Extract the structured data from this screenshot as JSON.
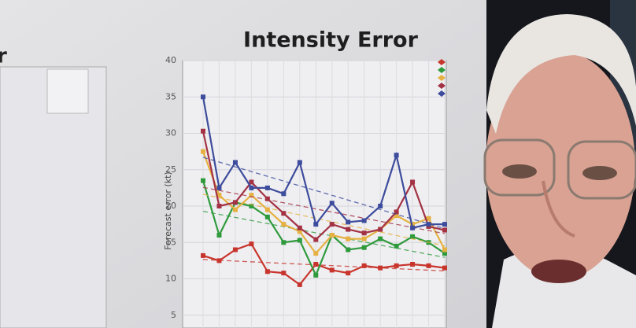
{
  "slide_text": {
    "left_title_fragment": "r"
  },
  "chart_data": {
    "type": "line",
    "title": "Intensity Error",
    "y_label": "Forecast error (kt)",
    "categories": [
      null,
      null,
      null,
      null,
      null,
      null,
      null,
      null,
      null,
      null,
      null,
      null,
      null,
      null,
      null,
      null
    ],
    "ylim": [
      4,
      40
    ],
    "yticks": [
      5,
      10,
      15,
      20,
      25,
      30,
      35,
      40
    ],
    "grid": true,
    "trend_lines": true,
    "series": [
      {
        "color": "#c8352c",
        "values": [
          13.2,
          12.5,
          14,
          14.8,
          11,
          10.8,
          9.2,
          12,
          11.2,
          10.8,
          11.8,
          11.5,
          11.8,
          12,
          11.8,
          11.5
        ]
      },
      {
        "color": "#2f9a3c",
        "values": [
          23.5,
          16,
          20.5,
          20,
          18.5,
          15,
          15.3,
          10.5,
          16,
          14,
          14.3,
          15.5,
          14.5,
          15.8,
          15,
          13.5
        ]
      },
      {
        "color": "#e6b143",
        "values": [
          27.5,
          21.5,
          19.5,
          21.5,
          19.5,
          17.5,
          16.5,
          13.5,
          16,
          15.5,
          15.5,
          16.8,
          18.7,
          17.5,
          18.3,
          14
        ]
      },
      {
        "color": "#a33244",
        "values": [
          30.3,
          20,
          20.5,
          23.3,
          21,
          19,
          17,
          15.4,
          17.5,
          16.8,
          16.3,
          16.8,
          19.2,
          23.3,
          17.2,
          16.7
        ]
      },
      {
        "color": "#3d4c9c",
        "values": [
          35,
          22.5,
          26,
          22.5,
          22.5,
          21.7,
          26,
          17.5,
          20.4,
          17.8,
          18,
          20,
          27,
          17,
          17.5,
          17.5
        ]
      }
    ]
  }
}
